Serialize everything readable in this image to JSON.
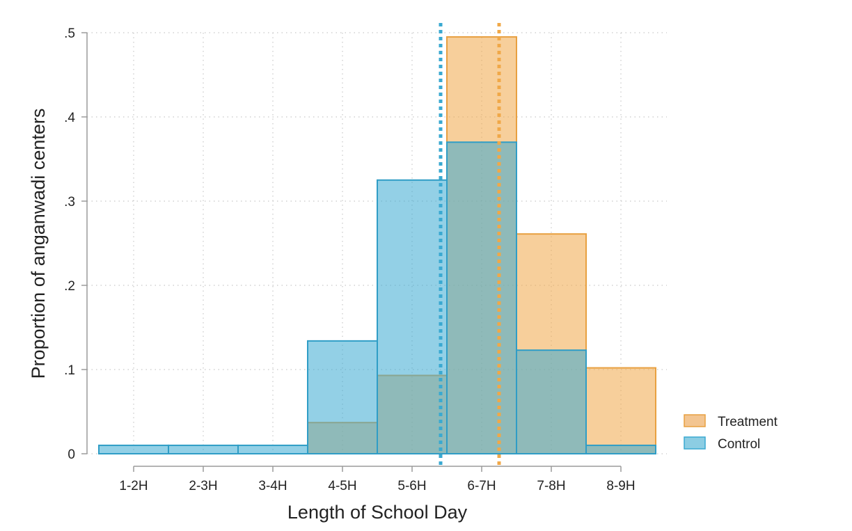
{
  "chart_data": {
    "type": "bar",
    "title": "",
    "xlabel": "Length of School Day",
    "ylabel": "Proportion of anganwadi centers",
    "categories": [
      "1-2H",
      "2-3H",
      "3-4H",
      "4-5H",
      "5-6H",
      "6-7H",
      "7-8H",
      "8-9H"
    ],
    "ylim": [
      0,
      0.5
    ],
    "yticks": [
      0,
      0.1,
      0.2,
      0.3,
      0.4,
      0.5
    ],
    "ytick_labels": [
      "0",
      ".1",
      ".2",
      ".3",
      ".4",
      ".5"
    ],
    "grid": true,
    "legend_position": "bottom-right",
    "series": [
      {
        "name": "Treatment",
        "color": "#f0a848",
        "values": [
          0.0,
          0.0,
          0.0,
          0.037,
          0.093,
          0.495,
          0.261,
          0.102
        ],
        "mean_line": 6.75
      },
      {
        "name": "Control",
        "color": "#3aa9d1",
        "values": [
          0.01,
          0.01,
          0.01,
          0.134,
          0.325,
          0.37,
          0.123,
          0.01
        ],
        "mean_line": 5.91
      }
    ]
  }
}
